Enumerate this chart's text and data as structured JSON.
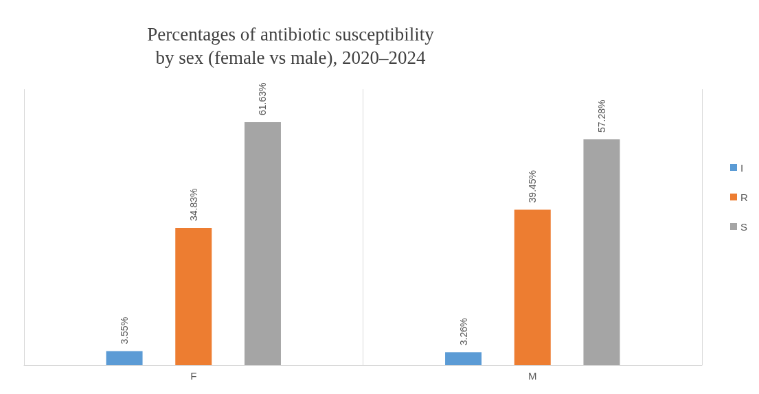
{
  "chart_data": {
    "type": "bar",
    "title": "Percentages of antibiotic susceptibility\nby sex (female vs male), 2020–2024",
    "categories": [
      "F",
      "M"
    ],
    "series": [
      {
        "name": "I",
        "color": "#5b9bd5",
        "values": [
          3.55,
          3.26
        ],
        "value_labels": [
          "3.55%",
          "3.26%"
        ]
      },
      {
        "name": "R",
        "color": "#ed7d31",
        "values": [
          34.83,
          39.45
        ],
        "value_labels": [
          "34.83%",
          "39.45%"
        ]
      },
      {
        "name": "S",
        "color": "#a5a5a5",
        "values": [
          61.63,
          57.28
        ],
        "value_labels": [
          "61.63%",
          "57.28%"
        ]
      }
    ],
    "grid": "x",
    "legend": "right"
  }
}
